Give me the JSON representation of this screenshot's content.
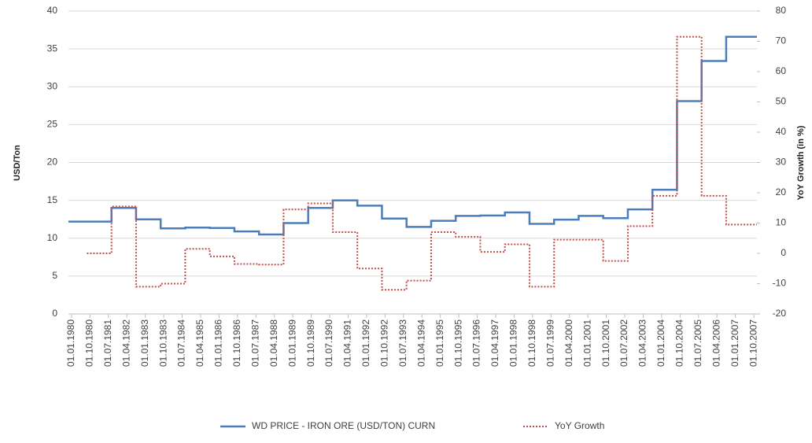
{
  "chart_data": {
    "type": "line",
    "y_label": "USD/Ton",
    "y2_label": "YoY Growth (in %)",
    "categories": [
      "01.01.1980",
      null,
      null,
      "01.10.1980",
      null,
      null,
      "01.07.1981",
      null,
      null,
      "01.04.1982",
      null,
      null,
      "01.01.1983",
      null,
      null,
      "01.10.1983",
      null,
      null,
      "01.07.1984",
      null,
      null,
      "01.04.1985",
      null,
      null,
      "01.01.1986",
      null,
      null,
      "01.10.1986",
      null,
      null,
      "01.07.1987",
      null,
      null,
      "01.04.1988",
      null,
      null,
      "01.01.1989",
      null,
      null,
      "01.10.1989",
      null,
      null,
      "01.07.1990",
      null,
      null,
      "01.04.1991",
      null,
      null,
      "01.01.1992",
      null,
      null,
      "01.10.1992",
      null,
      null,
      "01.07.1993",
      null,
      null,
      "01.04.1994",
      null,
      null,
      "01.01.1995",
      null,
      null,
      "01.10.1995",
      null,
      null,
      "01.07.1996",
      null,
      null,
      "01.04.1997",
      null,
      null,
      "01.01.1998",
      null,
      null,
      "01.10.1998",
      null,
      null,
      "01.07.1999",
      null,
      null,
      "01.04.2000",
      null,
      null,
      "01.01.2001",
      null,
      null,
      "01.10.2001",
      null,
      null,
      "01.07.2002",
      null,
      null,
      "01.04.2003",
      null,
      null,
      "01.01.2004",
      null,
      null,
      "01.10.2004",
      null,
      null,
      "01.07.2005",
      null,
      null,
      "01.04.2006",
      null,
      null,
      "01.01.2007",
      null,
      null,
      "01.10.2007"
    ],
    "series": [
      {
        "name": "WD PRICE - IRON ORE (USD/TON) CURN",
        "color": "#4a7ebb",
        "line_style": "solid",
        "axis": "y",
        "values": [
          12.2,
          12.2,
          12.2,
          12.2,
          12.2,
          12.2,
          12.2,
          14.0,
          14.0,
          14.0,
          14.0,
          12.5,
          12.5,
          12.5,
          12.5,
          11.3,
          11.3,
          11.3,
          11.3,
          11.4,
          11.4,
          11.4,
          11.4,
          11.35,
          11.35,
          11.35,
          11.35,
          10.9,
          10.9,
          10.9,
          10.9,
          10.5,
          10.5,
          10.5,
          10.5,
          12.0,
          12.0,
          12.0,
          12.0,
          14.0,
          14.0,
          14.0,
          14.0,
          15.0,
          15.0,
          15.0,
          15.0,
          14.3,
          14.3,
          14.3,
          14.3,
          12.6,
          12.6,
          12.6,
          12.6,
          11.5,
          11.5,
          11.5,
          11.5,
          12.3,
          12.3,
          12.3,
          12.3,
          12.95,
          12.95,
          12.95,
          12.95,
          13.0,
          13.0,
          13.0,
          13.0,
          13.4,
          13.4,
          13.4,
          13.4,
          11.9,
          11.9,
          11.9,
          11.9,
          12.45,
          12.45,
          12.45,
          12.45,
          12.95,
          12.95,
          12.95,
          12.95,
          12.65,
          12.65,
          12.65,
          12.65,
          13.8,
          13.8,
          13.8,
          13.8,
          16.4,
          16.4,
          16.4,
          16.4,
          28.1,
          28.1,
          28.1,
          28.1,
          33.4,
          33.4,
          33.4,
          33.4,
          36.6,
          36.6,
          36.6,
          36.6,
          36.6
        ]
      },
      {
        "name": "YoY Growth",
        "color": "#c0504d",
        "line_style": "dotted",
        "axis": "y2",
        "values": [
          null,
          null,
          null,
          0,
          0,
          0,
          0,
          15.5,
          15.5,
          15.5,
          15.5,
          -11,
          -11,
          -11,
          -11,
          -10,
          -10,
          -10,
          -10,
          1.5,
          1.5,
          1.5,
          1.5,
          -1,
          -1,
          -1,
          -1,
          -3.5,
          -3.5,
          -3.5,
          -3.5,
          -3.7,
          -3.7,
          -3.7,
          -3.7,
          14.5,
          14.5,
          14.5,
          14.5,
          16.5,
          16.5,
          16.5,
          16.5,
          7,
          7,
          7,
          7,
          -5,
          -5,
          -5,
          -5,
          -12,
          -12,
          -12,
          -12,
          -9,
          -9,
          -9,
          -9,
          7,
          7,
          7,
          7,
          5.5,
          5.5,
          5.5,
          5.5,
          0.5,
          0.5,
          0.5,
          0.5,
          3,
          3,
          3,
          3,
          -11,
          -11,
          -11,
          -11,
          4.5,
          4.5,
          4.5,
          4.5,
          4.5,
          4.5,
          4.5,
          4.5,
          -2.5,
          -2.5,
          -2.5,
          -2.5,
          9,
          9,
          9,
          9,
          19,
          19,
          19,
          19,
          71.5,
          71.5,
          71.5,
          71.5,
          19,
          19,
          19,
          19,
          9.5,
          9.5,
          9.5,
          9.5,
          9.5
        ]
      }
    ],
    "ylim": [
      0,
      40
    ],
    "yticks": [
      0,
      5,
      10,
      15,
      20,
      25,
      30,
      35,
      40
    ],
    "y2lim": [
      -20,
      80
    ],
    "y2ticks": [
      -20,
      -10,
      0,
      10,
      20,
      30,
      40,
      50,
      60,
      70,
      80
    ],
    "grid": true,
    "step": true,
    "legend": "bottom"
  }
}
